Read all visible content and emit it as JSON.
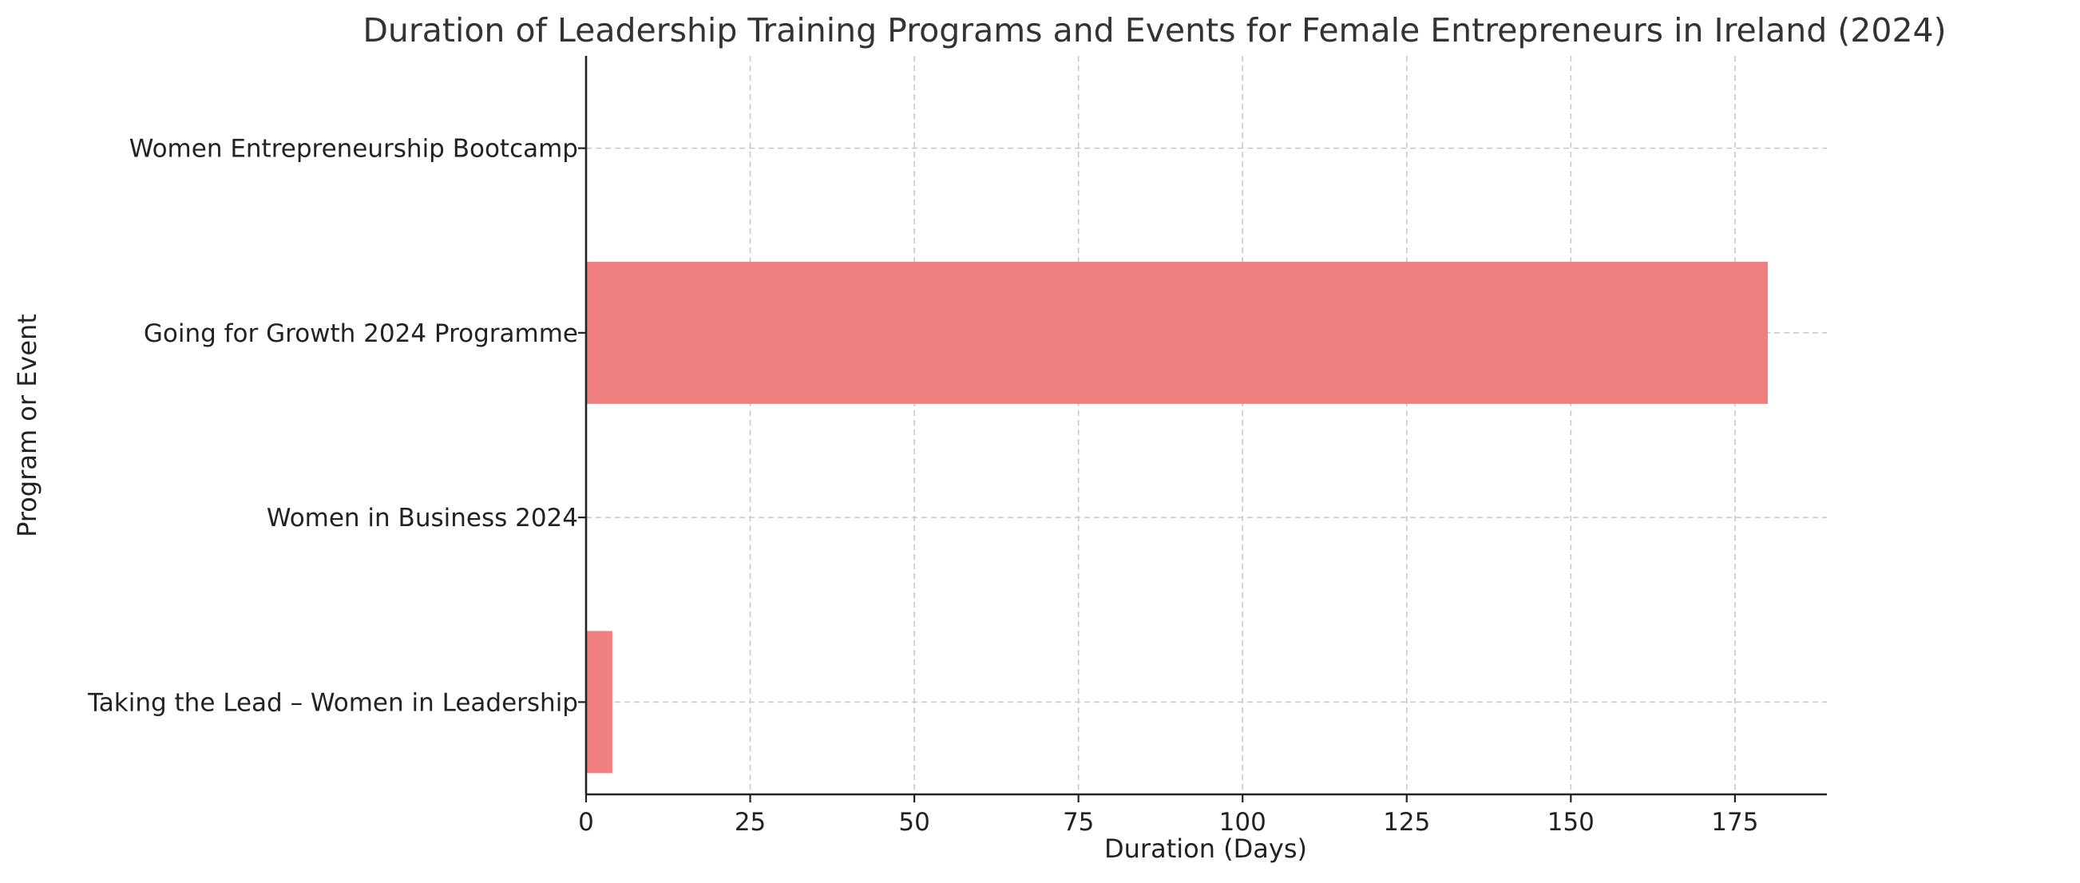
{
  "chart_data": {
    "type": "bar",
    "orientation": "horizontal",
    "title": "Duration of Leadership Training Programs and Events for Female Entrepreneurs in Ireland (2024)",
    "xlabel": "Duration (Days)",
    "ylabel": "Program or Event",
    "categories": [
      "Taking the Lead – Women in Leadership",
      "Women in Business 2024",
      "Going for Growth 2024 Programme",
      "Women Entrepreneurship Bootcamp"
    ],
    "values": [
      4,
      0,
      180,
      0
    ],
    "xlim": [
      0,
      189
    ],
    "xticks": [
      0,
      25,
      50,
      75,
      100,
      125,
      150,
      175
    ],
    "grid": true,
    "bar_color": "#f08080"
  }
}
